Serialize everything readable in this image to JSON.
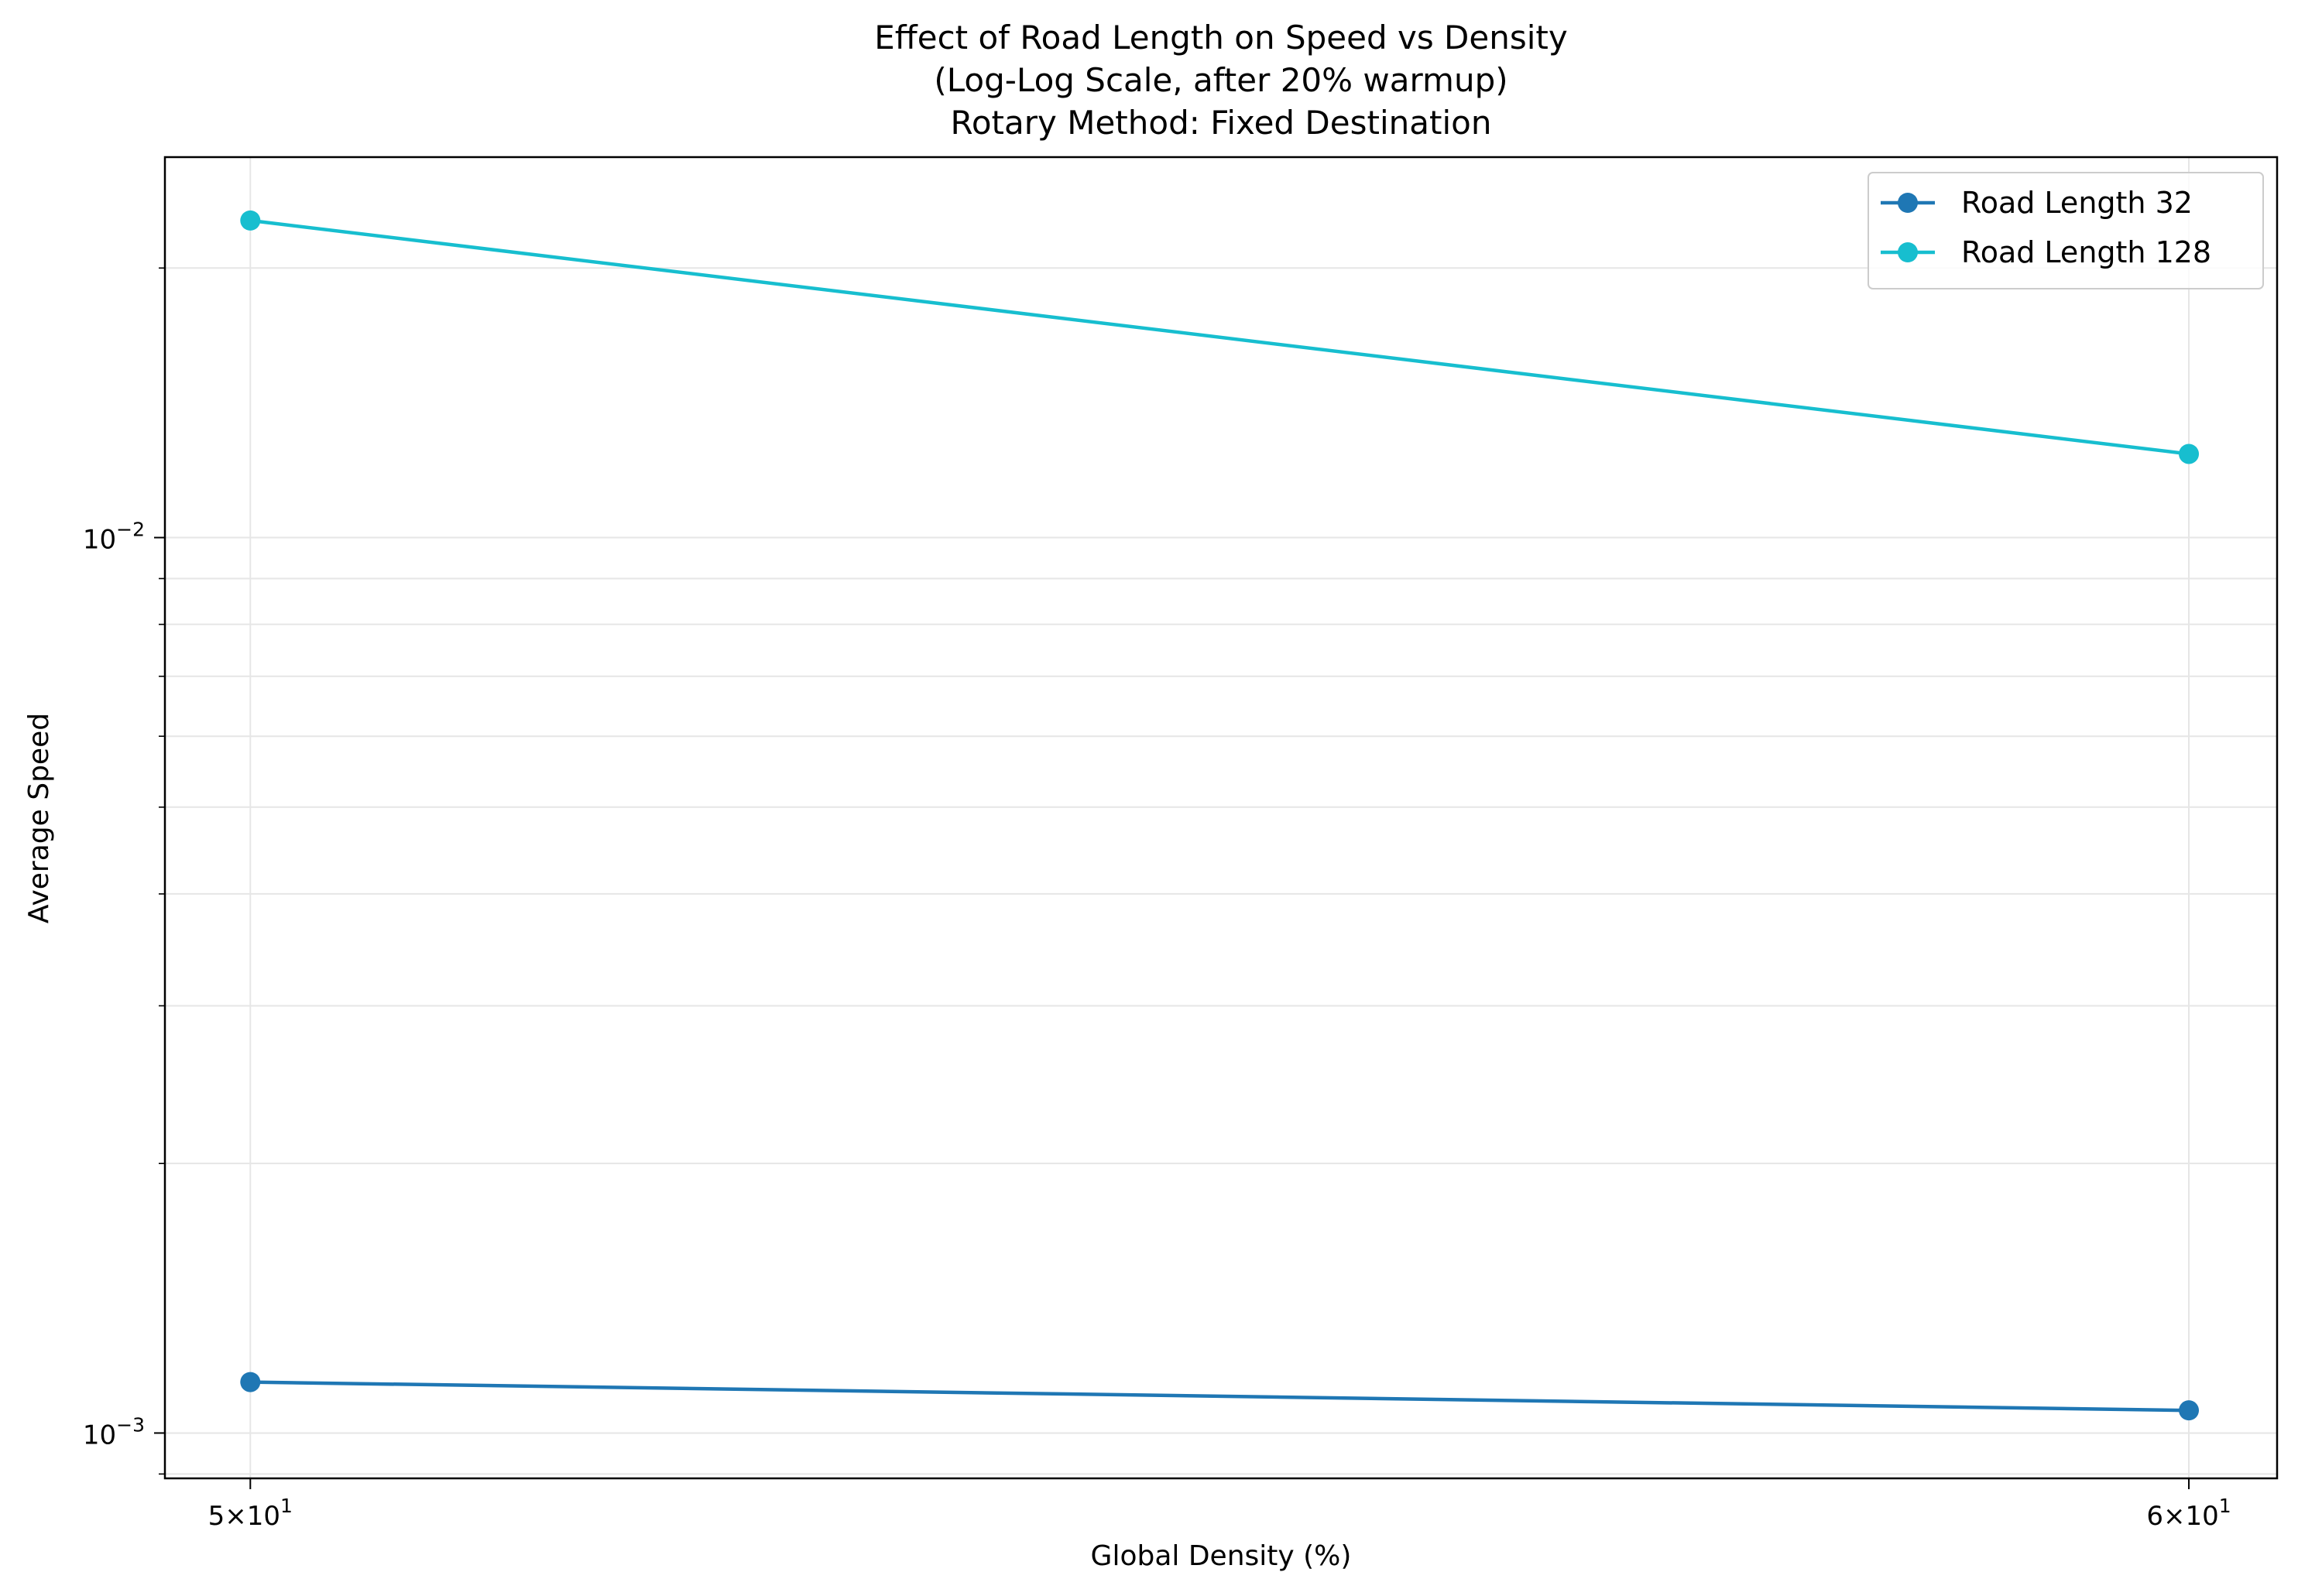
{
  "chart_data": {
    "type": "line",
    "title": "Effect of Road Length on Speed vs Density\n(Log-Log Scale, after 20% warmup)\nRotary Method: Fixed Destination",
    "title_lines": [
      "Effect of Road Length on Speed vs Density",
      "(Log-Log Scale, after 20% warmup)",
      "Rotary Method: Fixed Destination"
    ],
    "xlabel": "Global Density (%)",
    "ylabel": "Average Speed",
    "xscale": "log",
    "yscale": "log",
    "xlim": [
      49.6,
      60.5
    ],
    "ylim": [
      0.00089,
      0.0266
    ],
    "x_ticks": [
      {
        "value": 50,
        "label_base": "5×10",
        "label_exp": "1"
      },
      {
        "value": 60,
        "label_base": "6×10",
        "label_exp": "1"
      }
    ],
    "y_ticks": [
      {
        "value": 0.01,
        "label_base": "10",
        "label_exp": "−2"
      },
      {
        "value": 0.001,
        "label_base": "10",
        "label_exp": "−3"
      }
    ],
    "grid": true,
    "legend_position": "top-right",
    "series": [
      {
        "name": "Road Length 32",
        "color": "#1f77b4",
        "x": [
          50,
          60
        ],
        "y": [
          0.00114,
          0.00106
        ]
      },
      {
        "name": "Road Length 128",
        "color": "#17becf",
        "x": [
          50,
          60
        ],
        "y": [
          0.0226,
          0.0124
        ]
      }
    ]
  }
}
